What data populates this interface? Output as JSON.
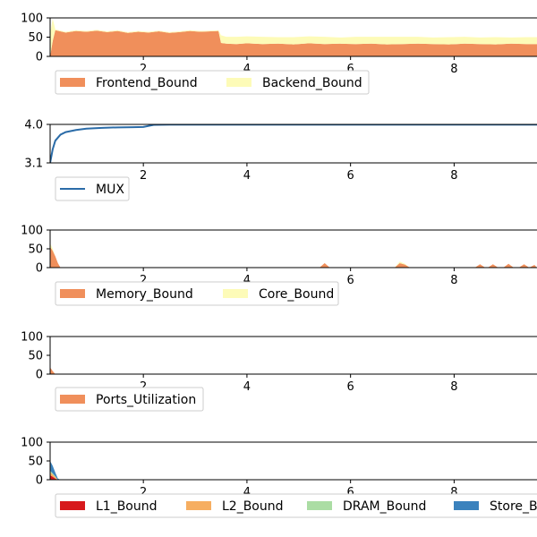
{
  "chart_data": [
    {
      "type": "area",
      "stacked": true,
      "xlim": [
        0.2,
        9.6
      ],
      "ylim": [
        0,
        100
      ],
      "x_ticks": [
        "2",
        "4",
        "6",
        "8"
      ],
      "y_ticks": [
        "0",
        "50",
        "100"
      ],
      "legend_placement": "below",
      "x": [
        0.2,
        0.25,
        0.3,
        0.5,
        0.7,
        0.9,
        1.1,
        1.3,
        1.5,
        1.7,
        1.9,
        2.1,
        2.3,
        2.5,
        2.7,
        2.9,
        3.1,
        3.3,
        3.45,
        3.5,
        3.6,
        3.8,
        4.0,
        4.3,
        4.6,
        4.9,
        5.2,
        5.5,
        5.8,
        6.1,
        6.4,
        6.7,
        7.0,
        7.3,
        7.6,
        7.9,
        8.2,
        8.5,
        8.8,
        9.1,
        9.4,
        9.6
      ],
      "series": [
        {
          "name": "Frontend_Bound",
          "color": "#f08f5b",
          "values": [
            0,
            40,
            68,
            62,
            66,
            64,
            67,
            63,
            66,
            61,
            64,
            62,
            65,
            61,
            63,
            66,
            64,
            65,
            66,
            35,
            33,
            32,
            34,
            32,
            33,
            31,
            34,
            32,
            33,
            32,
            33,
            31,
            32,
            33,
            32,
            31,
            33,
            32,
            31,
            33,
            32,
            32
          ]
        },
        {
          "name": "Backend_Bound",
          "color": "#fdfbb8",
          "values": [
            60,
            58,
            2,
            2,
            2,
            2,
            2,
            2,
            2,
            2,
            2,
            2,
            2,
            2,
            2,
            2,
            2,
            2,
            2,
            20,
            18,
            19,
            18,
            19,
            17,
            19,
            18,
            19,
            16,
            19,
            18,
            20,
            19,
            18,
            17,
            19,
            18,
            17,
            19,
            16,
            18,
            18
          ]
        }
      ]
    },
    {
      "type": "line",
      "xlim": [
        0.2,
        9.6
      ],
      "ylim": [
        3.1,
        4.0
      ],
      "x_ticks": [
        "2",
        "4",
        "6",
        "8"
      ],
      "y_ticks": [
        "3.1",
        "4.0"
      ],
      "legend_placement": "below",
      "x": [
        0.2,
        0.25,
        0.3,
        0.4,
        0.5,
        0.7,
        0.9,
        1.2,
        1.5,
        1.8,
        2.0,
        2.2,
        2.5,
        3.0,
        4.0,
        5.0,
        6.0,
        7.0,
        8.0,
        9.0,
        9.6
      ],
      "series": [
        {
          "name": "MUX",
          "color": "#2b6ca8",
          "values": [
            3.1,
            3.42,
            3.62,
            3.76,
            3.82,
            3.87,
            3.9,
            3.92,
            3.93,
            3.935,
            3.94,
            3.99,
            3.995,
            3.995,
            3.995,
            3.995,
            3.995,
            3.995,
            3.995,
            3.995,
            3.995
          ]
        }
      ]
    },
    {
      "type": "area",
      "stacked": true,
      "xlim": [
        0.2,
        9.6
      ],
      "ylim": [
        0,
        100
      ],
      "x_ticks": [
        "2",
        "4",
        "6",
        "8"
      ],
      "y_ticks": [
        "0",
        "50",
        "100"
      ],
      "legend_placement": "below",
      "x": [
        0.2,
        0.25,
        0.3,
        0.35,
        0.4,
        0.45,
        5.4,
        5.5,
        5.6,
        6.85,
        6.95,
        7.05,
        7.15,
        8.4,
        8.5,
        8.6,
        8.65,
        8.75,
        8.85,
        8.95,
        9.05,
        9.15,
        9.25,
        9.35,
        9.45,
        9.55,
        9.6
      ],
      "series": [
        {
          "name": "Memory_Bound",
          "color": "#f08f5b",
          "values": [
            55,
            45,
            30,
            12,
            0,
            0,
            0,
            12,
            0,
            0,
            12,
            8,
            0,
            0,
            9,
            0,
            0,
            9,
            0,
            0,
            10,
            0,
            0,
            9,
            0,
            7,
            0
          ]
        },
        {
          "name": "Core_Bound",
          "color": "#fdfbb8",
          "values": [
            10,
            5,
            0,
            0,
            0,
            0,
            0,
            0,
            0,
            0,
            4,
            2,
            0,
            0,
            0,
            0,
            0,
            0,
            0,
            0,
            0,
            0,
            0,
            0,
            0,
            0,
            0
          ]
        }
      ]
    },
    {
      "type": "area",
      "stacked": true,
      "xlim": [
        0.2,
        9.6
      ],
      "ylim": [
        0,
        100
      ],
      "x_ticks": [
        "2",
        "4",
        "6",
        "8"
      ],
      "y_ticks": [
        "0",
        "50",
        "100"
      ],
      "legend_placement": "below",
      "x": [
        0.2,
        0.25,
        0.3,
        9.6
      ],
      "series": [
        {
          "name": "Ports_Utilization",
          "color": "#f08f5b",
          "values": [
            18,
            8,
            0,
            0
          ]
        }
      ]
    },
    {
      "type": "area",
      "stacked": true,
      "xlim": [
        0.2,
        9.6
      ],
      "ylim": [
        0,
        100
      ],
      "x_ticks": [
        "2",
        "4",
        "6",
        "8"
      ],
      "y_ticks": [
        "0",
        "50",
        "100"
      ],
      "legend_placement": "below",
      "x": [
        0.2,
        0.25,
        0.3,
        0.35,
        0.4,
        9.6
      ],
      "series": [
        {
          "name": "L1_Bound",
          "color": "#d7191c",
          "values": [
            12,
            8,
            3,
            0,
            0,
            0
          ]
        },
        {
          "name": "L2_Bound",
          "color": "#f6ae61",
          "values": [
            8,
            6,
            4,
            0,
            0,
            0
          ]
        },
        {
          "name": "DRAM_Bound",
          "color": "#abdda4",
          "values": [
            4,
            3,
            2,
            0,
            0,
            0
          ]
        },
        {
          "name": "Store_Bound",
          "color": "#3b82bd",
          "values": [
            26,
            20,
            10,
            3,
            0,
            0
          ]
        }
      ]
    }
  ]
}
